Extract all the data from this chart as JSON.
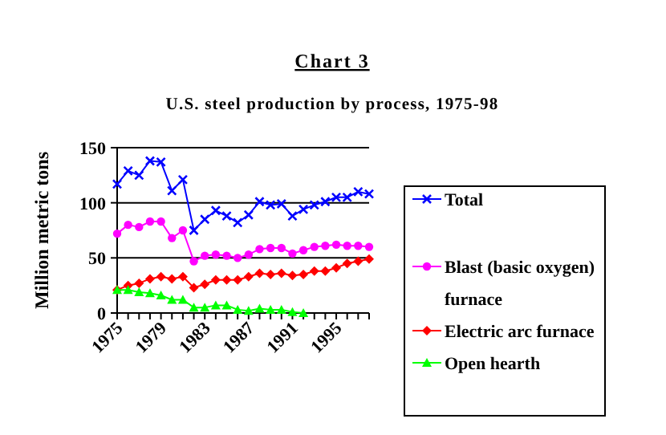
{
  "chart_data": {
    "type": "line",
    "title": "Chart 3",
    "subtitle": "U.S. steel production by process, 1975-98",
    "ylabel": "Million metric tons",
    "x": [
      1975,
      1976,
      1977,
      1978,
      1979,
      1980,
      1981,
      1982,
      1983,
      1984,
      1985,
      1986,
      1987,
      1988,
      1989,
      1990,
      1991,
      1992,
      1993,
      1994,
      1995,
      1996,
      1997,
      1998
    ],
    "xlim": [
      1975,
      1998
    ],
    "xticks": [
      {
        "value": 1975,
        "label": "1975"
      },
      {
        "value": 1976,
        "label": null
      },
      {
        "value": 1977,
        "label": null
      },
      {
        "value": 1978,
        "label": null
      },
      {
        "value": 1979,
        "label": "1979"
      },
      {
        "value": 1980,
        "label": null
      },
      {
        "value": 1981,
        "label": null
      },
      {
        "value": 1982,
        "label": null
      },
      {
        "value": 1983,
        "label": "1983"
      },
      {
        "value": 1984,
        "label": null
      },
      {
        "value": 1985,
        "label": null
      },
      {
        "value": 1986,
        "label": null
      },
      {
        "value": 1987,
        "label": "1987"
      },
      {
        "value": 1988,
        "label": null
      },
      {
        "value": 1989,
        "label": null
      },
      {
        "value": 1990,
        "label": null
      },
      {
        "value": 1991,
        "label": "1991"
      },
      {
        "value": 1992,
        "label": null
      },
      {
        "value": 1993,
        "label": null
      },
      {
        "value": 1994,
        "label": null
      },
      {
        "value": 1995,
        "label": "1995"
      },
      {
        "value": 1996,
        "label": null
      },
      {
        "value": 1997,
        "label": null
      },
      {
        "value": 1998,
        "label": null
      }
    ],
    "ylim": [
      0,
      150
    ],
    "yticks": [
      0,
      50,
      100,
      150
    ],
    "grid": "y",
    "legend": "right",
    "series": [
      {
        "name": "Total",
        "color": "#0000ff",
        "marker": "cross",
        "values": [
          117,
          129,
          125,
          138,
          137,
          111,
          121,
          75,
          85,
          93,
          88,
          82,
          89,
          101,
          98,
          99,
          88,
          94,
          98,
          101,
          105,
          105,
          110,
          108
        ]
      },
      {
        "name": "Blast (basic oxygen) furnace",
        "color": "#ff00ff",
        "marker": "circle",
        "values": [
          72,
          80,
          78,
          83,
          83,
          68,
          75,
          47,
          52,
          53,
          52,
          50,
          53,
          58,
          59,
          59,
          54,
          57,
          60,
          61,
          62,
          61,
          61,
          60
        ]
      },
      {
        "name": "Electric arc furnace",
        "color": "#ff0000",
        "marker": "diamond",
        "values": [
          21,
          25,
          27,
          31,
          33,
          31,
          33,
          23,
          26,
          30,
          30,
          30,
          33,
          36,
          35,
          36,
          34,
          35,
          38,
          38,
          41,
          45,
          47,
          49
        ]
      },
      {
        "name": "Open hearth",
        "color": "#00ff00",
        "marker": "triangle",
        "values": [
          21,
          21,
          19,
          18,
          16,
          12,
          12,
          5,
          5,
          7,
          7,
          3,
          2,
          4,
          3,
          3,
          1,
          0,
          null,
          null,
          null,
          null,
          null,
          null
        ]
      }
    ]
  }
}
